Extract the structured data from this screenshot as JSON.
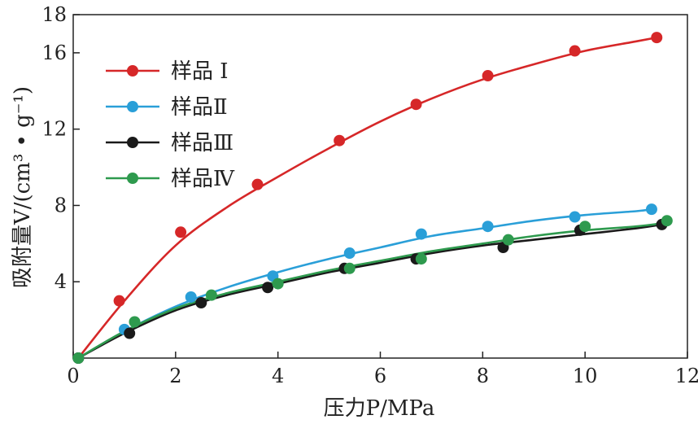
{
  "chart_data": {
    "type": "scatter",
    "title": "",
    "xlabel": "压力P/MPa",
    "ylabel": "吸附量V/(cm³ • g⁻¹)",
    "xlim": [
      0,
      12
    ],
    "ylim": [
      0,
      18
    ],
    "xticks": [
      0,
      2,
      4,
      6,
      8,
      10,
      12
    ],
    "yticks": [
      4,
      8,
      12,
      16,
      18
    ],
    "grid": false,
    "legend": "top-left",
    "series": [
      {
        "name": "样品 Ⅰ",
        "color": "#d62728",
        "x": [
          0.1,
          0.9,
          2.1,
          3.6,
          5.2,
          6.7,
          8.1,
          9.8,
          11.4
        ],
        "y": [
          0,
          3.0,
          6.6,
          9.1,
          11.4,
          13.3,
          14.8,
          16.1,
          16.8
        ],
        "fit": [
          [
            0.1,
            0
          ],
          [
            1.0,
            3.0
          ],
          [
            2.0,
            5.9
          ],
          [
            3.0,
            7.9
          ],
          [
            4.0,
            9.5
          ],
          [
            5.0,
            11.0
          ],
          [
            6.0,
            12.4
          ],
          [
            7.0,
            13.6
          ],
          [
            8.0,
            14.6
          ],
          [
            9.0,
            15.4
          ],
          [
            10.0,
            16.1
          ],
          [
            11.0,
            16.6
          ],
          [
            11.4,
            16.8
          ]
        ]
      },
      {
        "name": "样品Ⅱ",
        "color": "#2a9fd8",
        "x": [
          0.1,
          1.0,
          2.3,
          3.9,
          5.4,
          6.8,
          8.1,
          9.8,
          11.3
        ],
        "y": [
          0,
          1.5,
          3.2,
          4.3,
          5.5,
          6.5,
          6.9,
          7.4,
          7.8
        ],
        "fit": [
          [
            0.1,
            0
          ],
          [
            1.0,
            1.4
          ],
          [
            2.0,
            2.7
          ],
          [
            3.0,
            3.7
          ],
          [
            4.0,
            4.5
          ],
          [
            5.0,
            5.2
          ],
          [
            6.0,
            5.8
          ],
          [
            7.0,
            6.4
          ],
          [
            8.0,
            6.8
          ],
          [
            9.0,
            7.2
          ],
          [
            10.0,
            7.5
          ],
          [
            11.0,
            7.7
          ],
          [
            11.3,
            7.8
          ]
        ]
      },
      {
        "name": "样品Ⅲ",
        "color": "#1a1a1a",
        "x": [
          0.1,
          1.1,
          2.5,
          3.8,
          5.3,
          6.7,
          8.4,
          9.9,
          11.5
        ],
        "y": [
          0,
          1.3,
          2.9,
          3.7,
          4.7,
          5.2,
          5.8,
          6.7,
          7.0
        ],
        "fit": [
          [
            0.1,
            0
          ],
          [
            1.0,
            1.3
          ],
          [
            2.0,
            2.5
          ],
          [
            3.0,
            3.3
          ],
          [
            4.0,
            3.9
          ],
          [
            5.0,
            4.5
          ],
          [
            6.0,
            5.0
          ],
          [
            7.0,
            5.5
          ],
          [
            8.0,
            5.9
          ],
          [
            9.0,
            6.2
          ],
          [
            10.0,
            6.5
          ],
          [
            11.0,
            6.8
          ],
          [
            11.5,
            7.0
          ]
        ]
      },
      {
        "name": "样品Ⅳ",
        "color": "#2e9a4e",
        "x": [
          0.1,
          1.2,
          2.7,
          4.0,
          5.4,
          6.8,
          8.5,
          10.0,
          11.6
        ],
        "y": [
          0,
          1.9,
          3.3,
          3.9,
          4.7,
          5.2,
          6.2,
          6.9,
          7.2
        ],
        "fit": [
          [
            0.1,
            0
          ],
          [
            1.0,
            1.4
          ],
          [
            2.0,
            2.6
          ],
          [
            3.0,
            3.4
          ],
          [
            4.0,
            4.0
          ],
          [
            5.0,
            4.6
          ],
          [
            6.0,
            5.1
          ],
          [
            7.0,
            5.6
          ],
          [
            8.0,
            6.0
          ],
          [
            9.0,
            6.4
          ],
          [
            10.0,
            6.7
          ],
          [
            11.0,
            6.9
          ],
          [
            11.6,
            7.1
          ]
        ]
      }
    ]
  }
}
